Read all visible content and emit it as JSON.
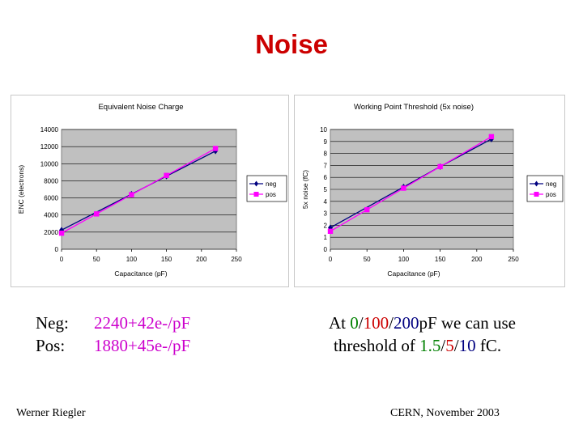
{
  "slide": {
    "title": "Noise",
    "footer_left": "Werner Riegler",
    "footer_right": "CERN, November 2003",
    "neg_label": "Neg:",
    "neg_value": "2240+42e-/pF",
    "pos_label": "Pos:",
    "pos_value": "1880+45e-/pF",
    "right_note": {
      "line1_prefix": "At ",
      "v1": "0",
      "sep1": "/",
      "v2": "100",
      "sep2": "/",
      "v3": "200",
      "line1_suffix": "pF we can use",
      "line2_prefix": "threshold of ",
      "t1": "1.5",
      "tsep1": "/",
      "t2": "5",
      "tsep2": "/",
      "t3": "10",
      "line2_suffix": " fC."
    },
    "colors": {
      "title": "#cc0000",
      "green": "#008000",
      "red": "#cc0000",
      "blue": "#000080",
      "magenta": "#cc00cc",
      "neg": "#000080",
      "pos": "#ff00ff",
      "plot_bg": "#c0c0c0"
    }
  },
  "chart_data": [
    {
      "type": "line",
      "title": "Equivalent Noise Charge",
      "xlabel": "Capacitance (pF)",
      "ylabel": "ENC (electrons)",
      "xlim": [
        0,
        250
      ],
      "ylim": [
        0,
        14000
      ],
      "xticks": [
        "0",
        "50",
        "100",
        "150",
        "200",
        "250"
      ],
      "yticks": [
        "0",
        "2000",
        "4000",
        "6000",
        "8000",
        "10000",
        "12000",
        "14000"
      ],
      "grid": true,
      "legend": "right",
      "series": [
        {
          "name": "neg",
          "color": "#000080",
          "marker": "diamond",
          "x": [
            0,
            100,
            150,
            220
          ],
          "y": [
            2240,
            6440,
            8540,
            11480
          ]
        },
        {
          "name": "pos",
          "color": "#ff00ff",
          "marker": "square",
          "x": [
            0,
            50,
            100,
            150,
            220
          ],
          "y": [
            1880,
            4130,
            6380,
            8630,
            11780
          ]
        }
      ]
    },
    {
      "type": "line",
      "title": "Working Point Threshold (5x noise)",
      "xlabel": "Capacitance (pF)",
      "ylabel": "5x noise (fC)",
      "xlim": [
        0,
        250
      ],
      "ylim": [
        0,
        10
      ],
      "xticks": [
        "0",
        "50",
        "100",
        "150",
        "200",
        "250"
      ],
      "yticks": [
        "0",
        "1",
        "2",
        "3",
        "4",
        "5",
        "6",
        "7",
        "8",
        "9",
        "10"
      ],
      "grid": true,
      "legend": "right",
      "series": [
        {
          "name": "neg",
          "color": "#000080",
          "marker": "diamond",
          "x": [
            0,
            100,
            150,
            220
          ],
          "y": [
            1.8,
            5.2,
            6.9,
            9.2
          ]
        },
        {
          "name": "pos",
          "color": "#ff00ff",
          "marker": "square",
          "x": [
            0,
            50,
            100,
            150,
            220
          ],
          "y": [
            1.5,
            3.3,
            5.1,
            6.9,
            9.4
          ]
        }
      ]
    }
  ]
}
